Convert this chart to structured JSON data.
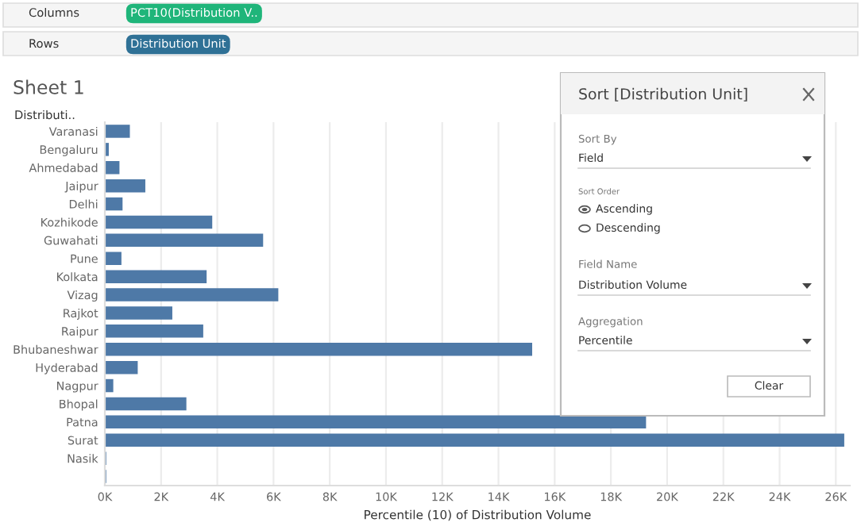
{
  "chart_data": {
    "type": "bar",
    "orientation": "horizontal",
    "title": "Sheet 1",
    "ylabel": "Distributi..",
    "xlabel": "Percentile (10) of Distribution Volume",
    "categories": [
      "Varanasi",
      "Bengaluru",
      "Ahmedabad",
      "Jaipur",
      "Delhi",
      "Kozhikode",
      "Guwahati",
      "Pune",
      "Kolkata",
      "Vizag",
      "Rajkot",
      "Raipur",
      "Bhubaneshwar",
      "Hyderabad",
      "Nagpur",
      "Bhopal",
      "Patna",
      "Surat",
      "Nasik",
      null
    ],
    "values": [
      890,
      140,
      520,
      1440,
      630,
      3820,
      5630,
      590,
      3620,
      6170,
      2400,
      3500,
      15200,
      1170,
      300,
      2900,
      19250,
      26300,
      50,
      50
    ],
    "color": "#4e79a7",
    "xlim": [
      0,
      26500
    ],
    "xticks": [
      {
        "value": 0,
        "label": "0K"
      },
      {
        "value": 2000,
        "label": "2K"
      },
      {
        "value": 4000,
        "label": "4K"
      },
      {
        "value": 6000,
        "label": "6K"
      },
      {
        "value": 8000,
        "label": "8K"
      },
      {
        "value": 10000,
        "label": "10K"
      },
      {
        "value": 12000,
        "label": "12K"
      },
      {
        "value": 14000,
        "label": "14K"
      },
      {
        "value": 16000,
        "label": "16K"
      },
      {
        "value": 18000,
        "label": "18K"
      },
      {
        "value": 20000,
        "label": "20K"
      },
      {
        "value": 22000,
        "label": "22K"
      },
      {
        "value": 24000,
        "label": "24K"
      },
      {
        "value": 26000,
        "label": "26K"
      }
    ],
    "grid": "x",
    "legend": false,
    "annotations": [
      "Columns",
      "PCT10(Distribution V..",
      "Rows",
      "Distribution Unit",
      "Sort [Distribution Unit]",
      "Sort By",
      "Field",
      "Sort Order",
      "Ascending",
      "Descending",
      "Field Name",
      "Distribution Volume",
      "Aggregation",
      "Percentile",
      "Clear"
    ]
  }
}
